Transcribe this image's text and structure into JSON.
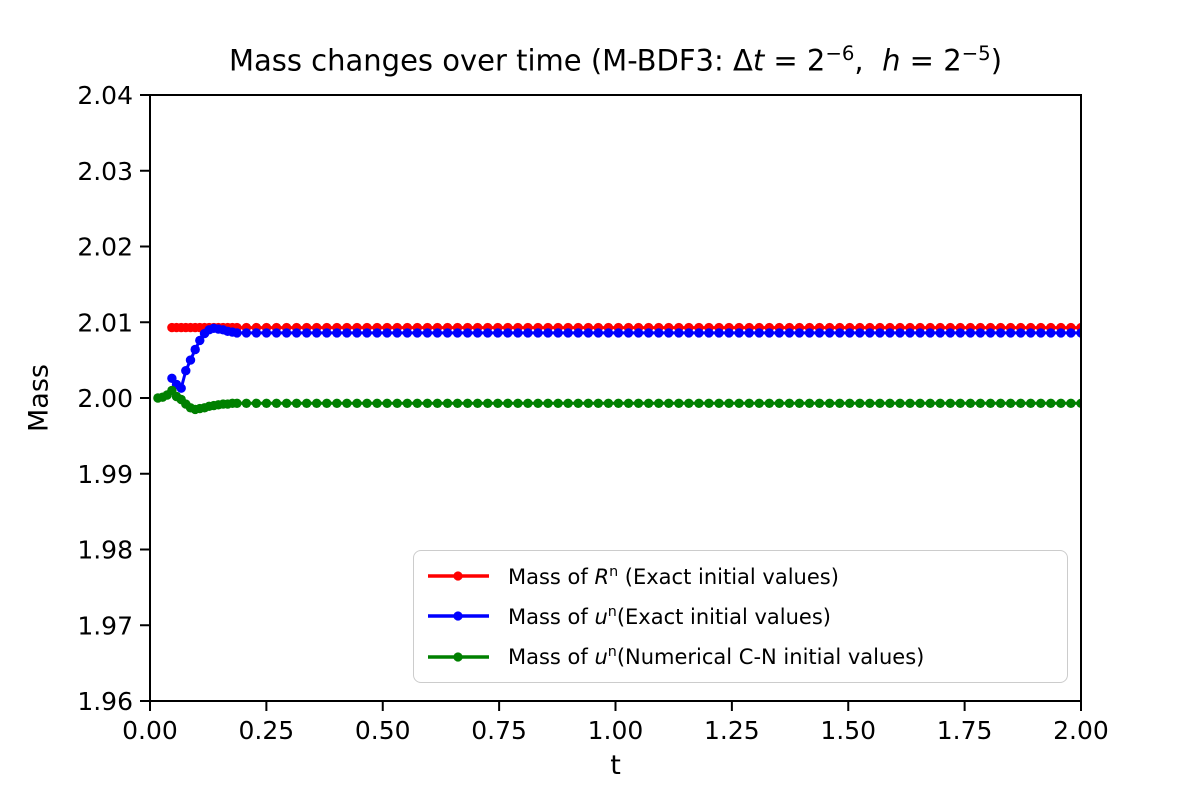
{
  "chart_data": {
    "type": "line",
    "title": "Mass changes over time (M-BDF3: Δ*t* = 2^{−6},  *h* = 2^{−5})",
    "xlabel": "t",
    "ylabel": "Mass",
    "xlim": [
      0,
      2
    ],
    "ylim": [
      1.96,
      2.04
    ],
    "grid": false,
    "legend_position": "lower right",
    "xticks": {
      "values": [
        0,
        0.25,
        0.5,
        0.75,
        1.0,
        1.25,
        1.5,
        1.75,
        2.0
      ],
      "labels": [
        "0.00",
        "0.25",
        "0.50",
        "0.75",
        "1.00",
        "1.25",
        "1.50",
        "1.75",
        "2.00"
      ]
    },
    "yticks": {
      "values": [
        1.96,
        1.97,
        1.98,
        1.99,
        2.0,
        2.01,
        2.02,
        2.03,
        2.04
      ],
      "labels": [
        "1.96",
        "1.97",
        "1.98",
        "1.99",
        "2.00",
        "2.01",
        "2.02",
        "2.03",
        "2.04"
      ]
    },
    "series": [
      {
        "id": "mass-Rn-exact",
        "label": "Mass of *R*^{n} (Exact initial values)",
        "color": "#ff0000",
        "marker": "circle",
        "transient_points": [
          [
            0.047,
            2.0093
          ],
          [
            0.057,
            2.0093
          ],
          [
            0.067,
            2.0093
          ],
          [
            0.077,
            2.0093
          ],
          [
            0.087,
            2.0093
          ],
          [
            0.097,
            2.0093
          ],
          [
            0.107,
            2.0093
          ],
          [
            0.117,
            2.0093
          ],
          [
            0.127,
            2.0093
          ],
          [
            0.137,
            2.0093
          ],
          [
            0.147,
            2.0093
          ],
          [
            0.157,
            2.0093
          ],
          [
            0.167,
            2.0093
          ],
          [
            0.177,
            2.0093
          ],
          [
            0.187,
            2.0093
          ]
        ],
        "steady": {
          "t_start": 0.207,
          "t_end": 2.0,
          "n": 84,
          "value": 2.0093
        }
      },
      {
        "id": "mass-un-exact",
        "label": "Mass of *u*^{n}(Exact initial values)",
        "color": "#0000ff",
        "marker": "circle",
        "transient_points": [
          [
            0.047,
            2.0026
          ],
          [
            0.057,
            2.0018
          ],
          [
            0.067,
            2.0013
          ],
          [
            0.077,
            2.0036
          ],
          [
            0.087,
            2.005
          ],
          [
            0.097,
            2.0064
          ],
          [
            0.107,
            2.0076
          ],
          [
            0.117,
            2.0085
          ],
          [
            0.127,
            2.009
          ],
          [
            0.137,
            2.0092
          ],
          [
            0.147,
            2.0091
          ],
          [
            0.157,
            2.009
          ],
          [
            0.167,
            2.0088
          ],
          [
            0.177,
            2.0087
          ],
          [
            0.187,
            2.0086
          ]
        ],
        "steady": {
          "t_start": 0.207,
          "t_end": 2.0,
          "n": 84,
          "value": 2.0086
        }
      },
      {
        "id": "mass-un-numerical-cn",
        "label": "Mass of *u*^{n}(Numerical C-N initial values)",
        "color": "#008000",
        "marker": "circle",
        "transient_points": [
          [
            0.017,
            2.0
          ],
          [
            0.027,
            2.0001
          ],
          [
            0.037,
            2.0004
          ],
          [
            0.047,
            2.001
          ],
          [
            0.057,
            2.0002
          ],
          [
            0.067,
            1.9998
          ],
          [
            0.077,
            1.9992
          ],
          [
            0.087,
            1.9987
          ],
          [
            0.097,
            1.9985
          ],
          [
            0.107,
            1.9986
          ],
          [
            0.117,
            1.9987
          ],
          [
            0.127,
            1.9989
          ],
          [
            0.137,
            1.999
          ],
          [
            0.147,
            1.9991
          ],
          [
            0.157,
            1.9992
          ],
          [
            0.167,
            1.9992
          ],
          [
            0.177,
            1.9993
          ],
          [
            0.187,
            1.9993
          ]
        ],
        "steady": {
          "t_start": 0.207,
          "t_end": 2.0,
          "n": 84,
          "value": 1.9993
        }
      }
    ],
    "style": {
      "spine_color": "#000000",
      "background": "#ffffff",
      "legend_border_color": "#cccccc"
    }
  }
}
